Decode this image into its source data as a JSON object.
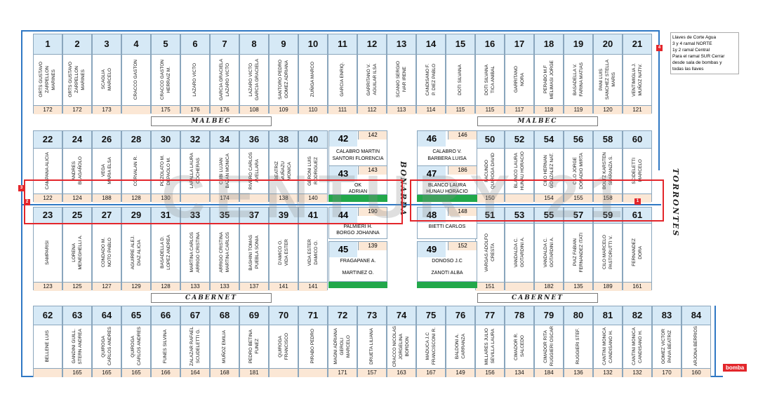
{
  "streets": {
    "malbec": "MALBEC",
    "cabernet": "CABERNET",
    "bonarda": "BONARDA",
    "torrontes": "TORRONTES"
  },
  "watermark": "CENTURY 21",
  "note": {
    "lines": [
      "Llaves de Corte Agua",
      "3 y 4 ramal NORTE",
      "1y 2 ramal Central",
      "Para el ramal SUR Cerrar",
      "desde sala de bombas y",
      "todas las llaves"
    ]
  },
  "bomba": "bomba",
  "tags": [
    "1",
    "2",
    "3",
    "4"
  ],
  "row1": [
    {
      "n": "1",
      "names": [
        "ORTS GUSTAVO",
        "ZARPELLON",
        "MARINES"
      ],
      "m": "172"
    },
    {
      "n": "2",
      "names": [
        "ORTS GUSTAVO",
        "ZARPELLON",
        "MARINES"
      ],
      "m": "172"
    },
    {
      "n": "3",
      "names": [
        "SCAGLIA",
        "MARCELO"
      ],
      "m": "173"
    },
    {
      "n": "4",
      "names": [
        "CRACCO GASTON"
      ],
      "m": ""
    },
    {
      "n": "5",
      "names": [
        "CRACCO GASTON",
        "HERRAIZ M."
      ],
      "m": "175"
    },
    {
      "n": "6",
      "names": [
        "LAZARO VICTO"
      ],
      "m": "176"
    },
    {
      "n": "7",
      "names": [
        "GARCIA GRACIELA",
        "LAZARO VICTO"
      ],
      "m": "176"
    },
    {
      "n": "8",
      "names": [
        "LAZARO VICTO",
        "GARCIA GRACIELA"
      ],
      "m": "108"
    },
    {
      "n": "9",
      "names": [
        "SANTORO PEDRO",
        "GOMEZ ADRIANA"
      ],
      "m": "109"
    },
    {
      "n": "10",
      "names": [
        "ZUÑIGA MARCO"
      ],
      "m": "110"
    },
    {
      "n": "11",
      "names": [
        "GARCIA ENRIQ."
      ],
      "m": "111"
    },
    {
      "n": "12",
      "names": [
        "GARRITANO V.",
        "AGUILAR ILSA"
      ],
      "m": "112"
    },
    {
      "n": "13",
      "names": [
        "SCANIO SERGIO",
        "IVAR IRENE"
      ],
      "m": "113"
    },
    {
      "n": "14",
      "names": [
        "CANDISANO F.",
        "P. DIEZ PABLO"
      ],
      "m": "114"
    },
    {
      "n": "15",
      "names": [
        "DOTI SILVANA"
      ],
      "m": "115"
    },
    {
      "n": "16",
      "names": [
        "DOTI SILVANA",
        "TICA ANIBAL"
      ],
      "m": "115"
    },
    {
      "n": "17",
      "names": [
        "GARRITANO",
        "NORA"
      ],
      "m": "117"
    },
    {
      "n": "18",
      "names": [
        "PERABO M.F",
        "MELIMASI JORGE"
      ],
      "m": "118"
    },
    {
      "n": "19",
      "names": [
        "BASADELLA V.",
        "FARINA MATIAS"
      ],
      "m": "119"
    },
    {
      "n": "20",
      "names": [
        "PANI LUIS",
        "SANCHEZ STELLA",
        "MARIS"
      ],
      "m": "120"
    },
    {
      "n": "21",
      "names": [
        "VENTIMIGLIA J.",
        "MUÑOZ NATIV."
      ],
      "m": "121"
    }
  ],
  "row2": [
    {
      "n": "22",
      "names": [
        "CAMPANA ALICIA"
      ],
      "m": "122"
    },
    {
      "n": "24",
      "names": [
        "ANDRES",
        "BLAGAÑOLO"
      ],
      "m": "124"
    },
    {
      "n": "26",
      "names": [
        "VEGA",
        "MARIA ELSA"
      ],
      "m": "188"
    },
    {
      "n": "28",
      "names": [
        "CORVALAN R."
      ],
      "m": "128"
    },
    {
      "n": "30",
      "names": [
        "PIZZOLATO M.",
        "DEPAOLO M."
      ],
      "m": "130"
    },
    {
      "n": "32",
      "names": [
        "LAFALLA LAURA",
        "COCHERAS"
      ],
      "m": ""
    },
    {
      "n": "34",
      "names": [
        "CUBI LUJAN",
        "BAZAN MONICA"
      ],
      "m": "174"
    },
    {
      "n": "36",
      "names": [
        "RIVERO CARLOS",
        "AVELLARA"
      ],
      "m": ""
    },
    {
      "n": "38",
      "names": [
        "BEATRIZ",
        "MUÑAZU",
        "MONICA"
      ],
      "m": "138"
    },
    {
      "n": "40",
      "names": [
        "GERONI LUIS",
        "RODRIGUEZ"
      ],
      "m": "140"
    },
    {
      "n": "50",
      "names": [
        "FACUNDO",
        "QUIROGA DAVID"
      ],
      "m": "150"
    },
    {
      "n": "52",
      "names": [
        "BLANCO LAURA",
        "HUNAU HORACIO"
      ],
      "m": ""
    },
    {
      "n": "54",
      "names": [
        "CILO HERNAN",
        "GONZALEZ NAT."
      ],
      "m": "154"
    },
    {
      "n": "56",
      "names": [
        "CILO JORGE",
        "DONADIO MIRTA"
      ],
      "m": "155"
    },
    {
      "n": "58",
      "names": [
        "BOLTZ KARSTEN",
        "SPARANZA S."
      ],
      "m": "158"
    },
    {
      "n": "60",
      "names": [
        "SCIDELETTI",
        "MARCELO"
      ],
      "m": ""
    }
  ],
  "row3": [
    {
      "n": "23",
      "names": [
        "SAMPARISI"
      ],
      "m": "123"
    },
    {
      "n": "25",
      "names": [
        "LORENA",
        "MENEGHELLI A."
      ],
      "m": "125"
    },
    {
      "n": "27",
      "names": [
        "CONDADO M.",
        "NOTO PABLO"
      ],
      "m": "127"
    },
    {
      "n": "29",
      "names": [
        "AGUIRRE ALEJ.",
        "DIAZ ALICIA"
      ],
      "m": "129"
    },
    {
      "n": "31",
      "names": [
        "BASADELLA D.",
        "LOPEZ ANDREA"
      ],
      "m": "128"
    },
    {
      "n": "33",
      "names": [
        "MARTINA CARLOS",
        "ARRIGO CRISTINA"
      ],
      "m": "133"
    },
    {
      "n": "35",
      "names": [
        "ARRIGO CRISTINA",
        "MARTINA CARLOS"
      ],
      "m": "133"
    },
    {
      "n": "37",
      "names": [
        "BASHINI TOMAS",
        "PUEBLA SONIA"
      ],
      "m": "137"
    },
    {
      "n": "39",
      "names": [
        "D'AMICO O.",
        "VIDA ESTER"
      ],
      "m": "141"
    },
    {
      "n": "41",
      "names": [
        "VIDA ESTER",
        "DAMICO O."
      ],
      "m": "141"
    },
    {
      "n": "51",
      "names": [
        "VARGAS ADOLFO",
        "CRESTA"
      ],
      "m": "151"
    },
    {
      "n": "53",
      "names": [
        "VANDALDA C.",
        "GOTARDINI A."
      ],
      "m": ""
    },
    {
      "n": "55",
      "names": [
        "VANDALDA C.",
        "GOTARDINI A."
      ],
      "m": "182"
    },
    {
      "n": "57",
      "names": [
        "PIAZ FABIAN",
        "FERNANDEZ ITATI"
      ],
      "m": "135"
    },
    {
      "n": "59",
      "names": [
        "CILO MARCELO",
        "PASTORUTTI V."
      ],
      "m": "189"
    },
    {
      "n": "61",
      "names": [
        "FERNANDEZ",
        "DORA"
      ],
      "m": "161"
    }
  ],
  "row4": [
    {
      "n": "62",
      "names": [
        "BELLENE LUIS"
      ],
      "m": ""
    },
    {
      "n": "63",
      "names": [
        "GANDINI GUILL.",
        "STERN ANDREA"
      ],
      "m": "165"
    },
    {
      "n": "64",
      "names": [
        "QUIROGA",
        "CARLOS ANDRES"
      ],
      "m": "165"
    },
    {
      "n": "65",
      "names": [
        "QUIROGA",
        "CARLOS ANDRES"
      ],
      "m": "165"
    },
    {
      "n": "66",
      "names": [
        "FUNES SILVINA"
      ],
      "m": "166"
    },
    {
      "n": "67",
      "names": [
        "ZALAZAR RAFAEL",
        "SCUDELETTI G."
      ],
      "m": "164"
    },
    {
      "n": "68",
      "names": [
        "MUÑOZ EMILIA"
      ],
      "m": "168"
    },
    {
      "n": "69",
      "names": [
        "PEDRO BETINA",
        "FUNEZ"
      ],
      "m": "181"
    },
    {
      "n": "70",
      "names": [
        "QUIROGA",
        "FRANCISCO"
      ],
      "m": ""
    },
    {
      "n": "71",
      "names": [
        "PIRABO PEDRO"
      ],
      "m": ""
    },
    {
      "n": "72",
      "names": [
        "MAGNI ADRIANA",
        "GEROLI",
        "MARCELO"
      ],
      "m": "171"
    },
    {
      "n": "73",
      "names": [
        "DRUETA LILIANA"
      ],
      "m": "157"
    },
    {
      "n": "74",
      "names": [
        "CRACCO NICOLAS",
        "JORGELINA",
        "BORDON"
      ],
      "m": "163"
    },
    {
      "n": "75",
      "names": [
        "MADUCA J.C",
        "FRANCISCONI R."
      ],
      "m": "167"
    },
    {
      "n": "76",
      "names": [
        "BALDONI A.",
        "CARRANZA"
      ],
      "m": "149"
    },
    {
      "n": "77",
      "names": [
        "MILLARES JULIO",
        "SEVILLA LAURA"
      ],
      "m": "156"
    },
    {
      "n": "78",
      "names": [
        "CIMADOR R.",
        "SALCEDO"
      ],
      "m": "134"
    },
    {
      "n": "79",
      "names": [
        "CIMADOR RITA",
        "RUGGIERI OSCAR"
      ],
      "m": "184"
    },
    {
      "n": "80",
      "names": [
        "RUGGIERI STEF."
      ],
      "m": "136"
    },
    {
      "n": "81",
      "names": [
        "CANTINI MONICA",
        "CANDISANO H."
      ],
      "m": "132"
    },
    {
      "n": "82",
      "names": [
        "CANTINI MONICA",
        "CANDISANO H."
      ],
      "m": "132"
    },
    {
      "n": "83",
      "names": [
        "GOMEZ VICTOR",
        "PAIVA BEATRIZ"
      ],
      "m": "170"
    },
    {
      "n": "84",
      "names": [
        "ARJONA BERRIOS"
      ],
      "m": "160"
    }
  ],
  "center": {
    "b42": {
      "n": "42",
      "m": "142",
      "l1": "CALABRO MARTIN",
      "l2": "SANTORI FLORENCIA"
    },
    "b43": {
      "n": "43",
      "m": "143",
      "l1": "OK",
      "l2": "ADRIAN"
    },
    "b44": {
      "n": "44",
      "m": "190",
      "l1": "PALMIERI H.",
      "l2": "BORGO JOHANNA"
    },
    "b45": {
      "n": "45",
      "m": "139",
      "l1": "FRAGAPANE A.",
      "l2": "MARTINEZ O."
    },
    "b46": {
      "n": "46",
      "m": "146",
      "l1": "CALABRO V.",
      "l2": "BARBERA LUISA"
    },
    "b47": {
      "n": "47",
      "m": "186",
      "l1": "BLANCO LAURA",
      "l2": "HUNAU HORACIO"
    },
    "b48": {
      "n": "48",
      "m": "148",
      "l1": "BIETTI CARLOS",
      "l2": ""
    },
    "b49": {
      "n": "49",
      "m": "152",
      "l1": "DONOSO J.C",
      "l2": "ZANOTI ALBA"
    }
  }
}
